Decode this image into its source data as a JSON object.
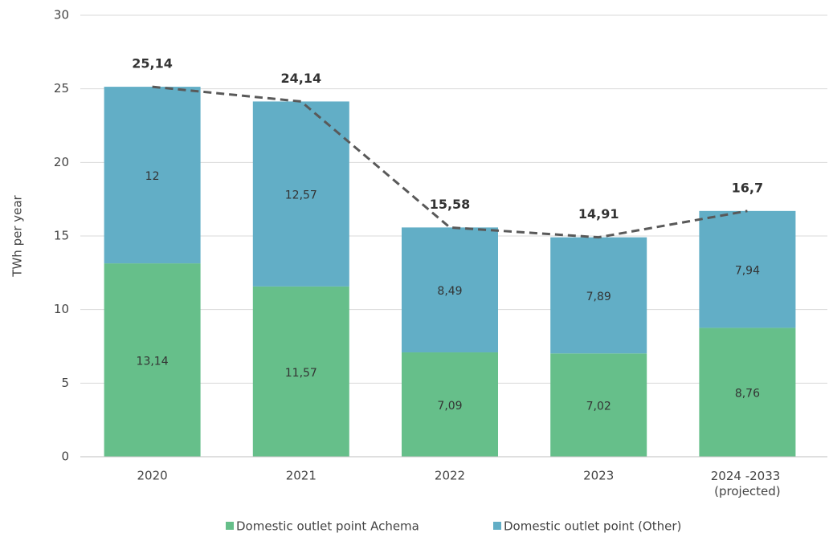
{
  "chart_data": {
    "type": "stacked-bar",
    "y_label": "TWh per year",
    "categories": [
      "2020",
      "2021",
      "2022",
      "2023",
      "2024 -2033\n(projected)"
    ],
    "series": [
      {
        "name": "Domestic outlet point Achema",
        "color": "#66bf8a",
        "values": [
          13.14,
          11.57,
          7.09,
          7.02,
          8.76
        ],
        "value_labels": [
          "13,14",
          "11,57",
          "7,09",
          "7,02",
          "8,76"
        ]
      },
      {
        "name": "Domestic outlet point (Other)",
        "color": "#62aec6",
        "values": [
          12,
          12.57,
          8.49,
          7.89,
          7.94
        ],
        "value_labels": [
          "12",
          "12,57",
          "8,49",
          "7,89",
          "7,94"
        ]
      }
    ],
    "totals": {
      "color": "#595959",
      "values": [
        25.14,
        24.14,
        15.58,
        14.91,
        16.7
      ],
      "value_labels": [
        "25,14",
        "24,14",
        "15,58",
        "14,91",
        "16,7"
      ]
    },
    "ylim": [
      0,
      30
    ],
    "yticks": [
      0,
      5,
      10,
      15,
      20,
      25,
      30
    ],
    "grid": true,
    "legend": "bottom"
  }
}
